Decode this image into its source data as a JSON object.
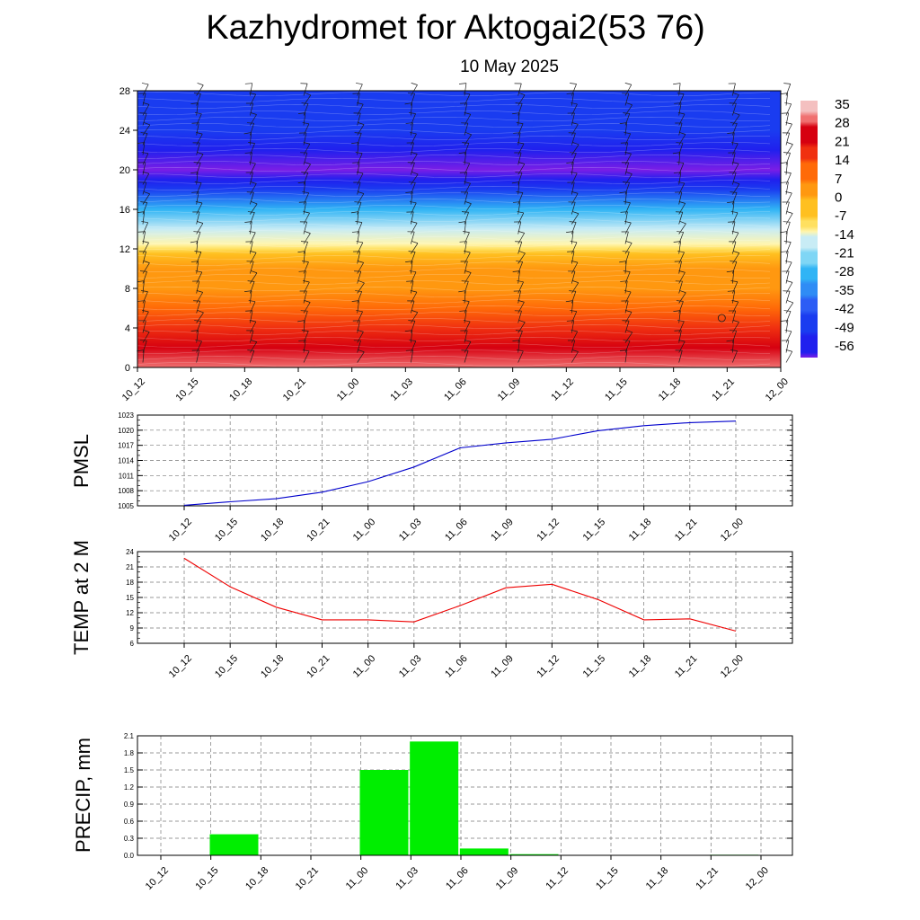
{
  "title": "Kazhydromet for Aktogai2(53 76)",
  "subtitle": "10 May 2025",
  "time_labels": [
    "10_12",
    "10_15",
    "10_18",
    "10_21",
    "11_00",
    "11_03",
    "11_06",
    "11_09",
    "11_12",
    "11_15",
    "11_18",
    "11_21",
    "12_00"
  ],
  "chart_data": [
    {
      "type": "heatmap",
      "name": "cross-section",
      "x_categories": [
        "10_12",
        "10_15",
        "10_18",
        "10_21",
        "11_00",
        "11_03",
        "11_06",
        "11_09",
        "11_12",
        "11_15",
        "11_18",
        "11_21",
        "12_00"
      ],
      "y_ticks": [
        0,
        4,
        8,
        12,
        16,
        20,
        24,
        28
      ],
      "ylim": [
        0,
        28
      ],
      "y_profile": [
        0,
        2,
        4,
        6,
        8,
        10,
        11.5,
        12,
        12.5,
        14,
        16,
        18,
        19,
        20,
        22,
        24,
        26,
        28
      ],
      "values_by_level": [
        30,
        22,
        17,
        11,
        6,
        1,
        -4,
        -9,
        -13,
        -19,
        -30,
        -45,
        -58,
        -60,
        -55,
        -50,
        -47,
        -45
      ],
      "wind_barbs": true,
      "colorbar": {
        "ticks": [
          35,
          28,
          21,
          14,
          7,
          0,
          -7,
          -14,
          -21,
          -28,
          -35,
          -42,
          -49,
          -56
        ],
        "min": -60,
        "max": 38
      }
    },
    {
      "type": "line",
      "name": "PMSL",
      "ylabel": "PMSL",
      "x": [
        "10_12",
        "10_15",
        "10_18",
        "10_21",
        "11_00",
        "11_03",
        "11_06",
        "11_09",
        "11_12",
        "11_15",
        "11_18",
        "11_21",
        "12_00"
      ],
      "values": [
        1005.1,
        1005.8,
        1006.4,
        1007.7,
        1009.8,
        1012.7,
        1016.5,
        1017.5,
        1018.2,
        1019.9,
        1020.9,
        1021.5,
        1021.8
      ],
      "ylim": [
        1005,
        1023
      ],
      "y_ticks": [
        1005,
        1008,
        1011,
        1014,
        1017,
        1020,
        1023
      ],
      "color": "#0000cc"
    },
    {
      "type": "line",
      "name": "TEMP",
      "ylabel": "TEMP at 2 M",
      "x": [
        "10_12",
        "10_15",
        "10_18",
        "10_21",
        "11_00",
        "11_03",
        "11_06",
        "11_09",
        "11_12",
        "11_15",
        "11_18",
        "11_21",
        "12_00"
      ],
      "values": [
        22.7,
        17.1,
        13.1,
        10.6,
        10.6,
        10.2,
        13.4,
        16.9,
        17.6,
        14.6,
        10.6,
        10.8,
        8.4
      ],
      "ylim": [
        6,
        24
      ],
      "y_ticks": [
        6,
        9,
        12,
        15,
        18,
        21,
        24
      ],
      "color": "#ee0000"
    },
    {
      "type": "bar",
      "name": "PRECIP",
      "ylabel": "PRECIP, mm",
      "categories": [
        "10_12",
        "10_15",
        "10_18",
        "10_21",
        "11_00",
        "11_03",
        "11_06",
        "11_09",
        "11_12",
        "11_15",
        "11_18",
        "11_21",
        "12_00"
      ],
      "values": [
        0,
        0.37,
        0,
        0,
        1.5,
        2.0,
        0.12,
        0.02,
        0,
        0,
        0,
        0.01,
        0
      ],
      "ylim": [
        0,
        2.1
      ],
      "y_ticks": [
        0.0,
        0.3,
        0.6,
        0.9,
        1.2,
        1.5,
        1.8,
        2.1
      ],
      "y_tick_labels": [
        "0.0",
        "0.3",
        "0.6",
        "0.9",
        "1.2",
        "1.5",
        "1.8",
        "2.1"
      ],
      "color": "#00ee00"
    }
  ]
}
